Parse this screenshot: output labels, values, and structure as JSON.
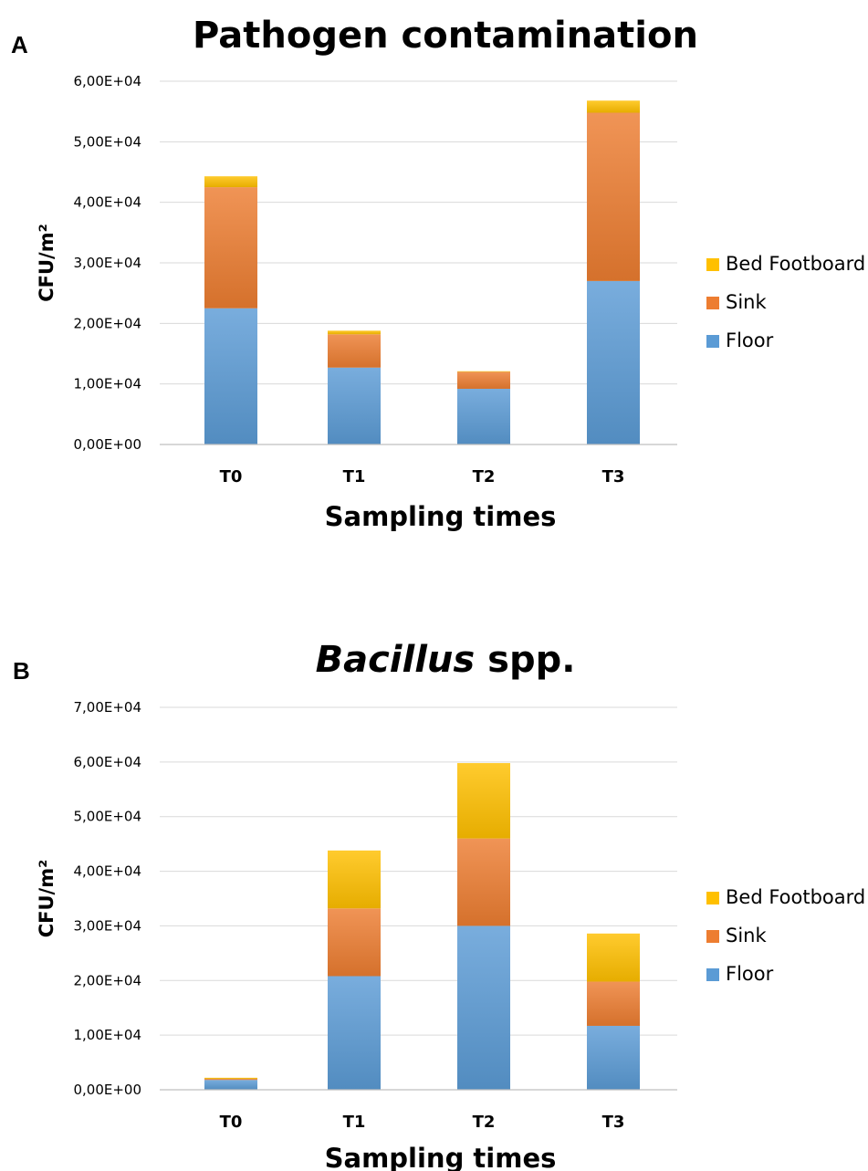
{
  "chart_data": [
    {
      "type": "bar",
      "stacked": true,
      "panel_label": "A",
      "title": "Pathogen contamination",
      "title_parts": [
        {
          "text": "Pathogen contamination",
          "italic": false
        }
      ],
      "xlabel": "Sampling times",
      "ylabel": "CFU/m²",
      "categories": [
        "T0",
        "T1",
        "T2",
        "T3"
      ],
      "ylim": [
        0,
        60000
      ],
      "yticks": [
        0,
        10000,
        20000,
        30000,
        40000,
        50000,
        60000
      ],
      "ytick_labels": [
        "0,00E+00",
        "1,00E+04",
        "2,00E+04",
        "3,00E+04",
        "4,00E+04",
        "5,00E+04",
        "6,00E+04"
      ],
      "grid": true,
      "legend_position": "right",
      "series": [
        {
          "name": "Floor",
          "color": "#5B9BD5",
          "values": [
            22500,
            12700,
            9200,
            27000
          ]
        },
        {
          "name": "Sink",
          "color": "#ED7D31",
          "values": [
            20000,
            5500,
            2800,
            27800
          ]
        },
        {
          "name": "Bed Footboard",
          "color": "#FFC000",
          "values": [
            1800,
            600,
            100,
            2000
          ]
        }
      ]
    },
    {
      "type": "bar",
      "stacked": true,
      "panel_label": "B",
      "title": "Bacillus spp.",
      "title_parts": [
        {
          "text": "Bacillus",
          "italic": true
        },
        {
          "text": " spp.",
          "italic": false
        }
      ],
      "xlabel": "Sampling times",
      "ylabel": "CFU/m²",
      "categories": [
        "T0",
        "T1",
        "T2",
        "T3"
      ],
      "ylim": [
        0,
        70000
      ],
      "yticks": [
        0,
        10000,
        20000,
        30000,
        40000,
        50000,
        60000,
        70000
      ],
      "ytick_labels": [
        "0,00E+00",
        "1,00E+04",
        "2,00E+04",
        "3,00E+04",
        "4,00E+04",
        "5,00E+04",
        "6,00E+04",
        "7,00E+04"
      ],
      "grid": true,
      "legend_position": "right",
      "series": [
        {
          "name": "Floor",
          "color": "#5B9BD5",
          "values": [
            1800,
            20800,
            30000,
            11700
          ]
        },
        {
          "name": "Sink",
          "color": "#ED7D31",
          "values": [
            200,
            12400,
            16000,
            8100
          ]
        },
        {
          "name": "Bed Footboard",
          "color": "#FFC000",
          "values": [
            200,
            10600,
            13800,
            8800
          ]
        }
      ]
    }
  ]
}
